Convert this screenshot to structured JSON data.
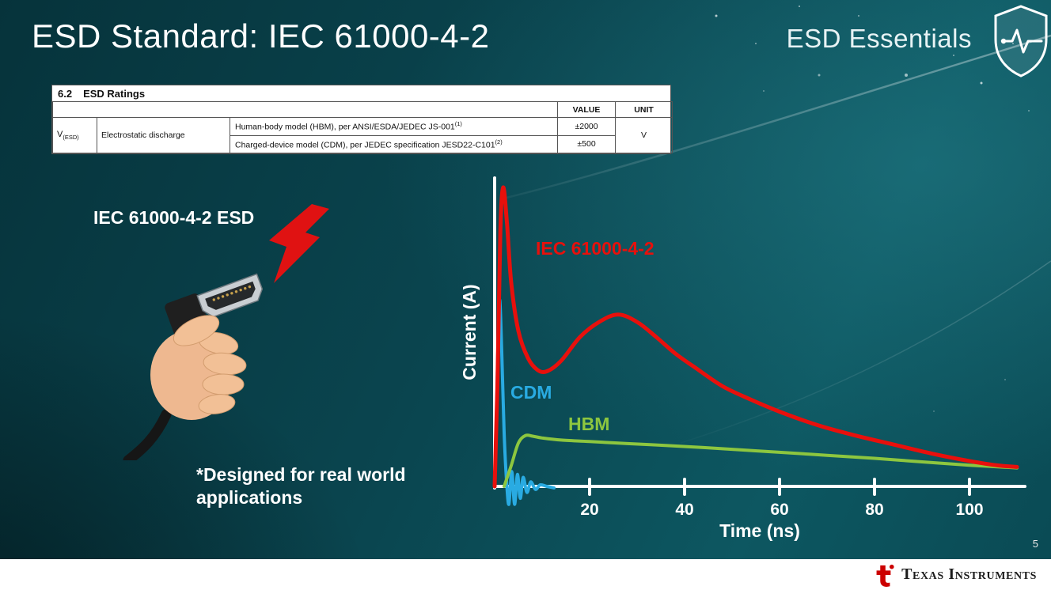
{
  "slide": {
    "title": "ESD Standard: IEC 61000-4-2",
    "brand_label": "ESD Essentials",
    "illustration_label": "IEC 61000-4-2 ESD",
    "footnote": "*Designed for real world applications",
    "page_number": "5"
  },
  "table": {
    "section_num": "6.2",
    "section_name": "ESD Ratings",
    "col_value": "VALUE",
    "col_unit": "UNIT",
    "param_symbol": "V",
    "param_symbol_sub": "(ESD)",
    "param_name": "Electrostatic discharge",
    "rows": [
      {
        "desc": "Human-body model (HBM), per ANSI/ESDA/JEDEC JS-001",
        "desc_sup": "(1)",
        "value": "±2000"
      },
      {
        "desc": "Charged-device model (CDM), per JEDEC specification JESD22-C101",
        "desc_sup": "(2)",
        "value": "±500"
      }
    ],
    "unit": "V"
  },
  "footer": {
    "brand": "Texas Instruments"
  },
  "colors": {
    "bolt_red": "#e01212",
    "ti_red": "#cc0000",
    "background_teal": "#0a4a54"
  },
  "chart_data": {
    "type": "line",
    "title": "",
    "xlabel": "Time (ns)",
    "ylabel": "Current (A)",
    "xlim": [
      0,
      112
    ],
    "ylim": [
      -0.08,
      1.05
    ],
    "x_ticks": [
      20,
      40,
      60,
      80,
      100
    ],
    "grid": false,
    "legend_position": "inline-labels",
    "note": "y values are relative amplitude; no y tick labels shown in figure",
    "series": [
      {
        "name": "IEC 61000-4-2",
        "color": "#e8100c",
        "points": [
          [
            0,
            0
          ],
          [
            0.6,
            0.35
          ],
          [
            1.2,
            0.85
          ],
          [
            1.8,
            1.0
          ],
          [
            2.6,
            0.88
          ],
          [
            3.5,
            0.68
          ],
          [
            5,
            0.52
          ],
          [
            7,
            0.43
          ],
          [
            9,
            0.39
          ],
          [
            11,
            0.385
          ],
          [
            14,
            0.42
          ],
          [
            18,
            0.5
          ],
          [
            22,
            0.55
          ],
          [
            26,
            0.575
          ],
          [
            30,
            0.55
          ],
          [
            34,
            0.5
          ],
          [
            38,
            0.445
          ],
          [
            42,
            0.4
          ],
          [
            48,
            0.335
          ],
          [
            54,
            0.29
          ],
          [
            60,
            0.25
          ],
          [
            68,
            0.205
          ],
          [
            76,
            0.17
          ],
          [
            84,
            0.14
          ],
          [
            92,
            0.11
          ],
          [
            100,
            0.085
          ],
          [
            106,
            0.07
          ],
          [
            110,
            0.065
          ]
        ]
      },
      {
        "name": "CDM",
        "color": "#29abe2",
        "points": [
          [
            0,
            0
          ],
          [
            0.4,
            0.25
          ],
          [
            0.8,
            0.55
          ],
          [
            1.1,
            0.62
          ],
          [
            1.5,
            0.45
          ],
          [
            2.0,
            0.18
          ],
          [
            2.5,
            0.02
          ],
          [
            3.0,
            -0.06
          ],
          [
            3.6,
            0.05
          ],
          [
            4.2,
            -0.06
          ],
          [
            4.8,
            0.04
          ],
          [
            5.4,
            -0.04
          ],
          [
            6.0,
            0.03
          ],
          [
            6.8,
            -0.02
          ],
          [
            7.6,
            0.015
          ],
          [
            8.6,
            -0.01
          ],
          [
            9.6,
            0.005
          ],
          [
            11,
            0
          ],
          [
            12.5,
            -0.005
          ]
        ]
      },
      {
        "name": "HBM",
        "color": "#8dc63f",
        "points": [
          [
            2,
            0
          ],
          [
            3.5,
            0.07
          ],
          [
            5,
            0.145
          ],
          [
            6.5,
            0.17
          ],
          [
            8,
            0.168
          ],
          [
            10,
            0.162
          ],
          [
            14,
            0.155
          ],
          [
            20,
            0.15
          ],
          [
            28,
            0.143
          ],
          [
            36,
            0.137
          ],
          [
            44,
            0.13
          ],
          [
            52,
            0.122
          ],
          [
            60,
            0.114
          ],
          [
            70,
            0.104
          ],
          [
            80,
            0.094
          ],
          [
            90,
            0.082
          ],
          [
            100,
            0.071
          ],
          [
            110,
            0.062
          ]
        ]
      }
    ],
    "labels": [
      {
        "text": "IEC 61000-4-2",
        "color": "#e8100c"
      },
      {
        "text": "CDM",
        "color": "#29abe2"
      },
      {
        "text": "HBM",
        "color": "#8dc63f"
      }
    ]
  }
}
